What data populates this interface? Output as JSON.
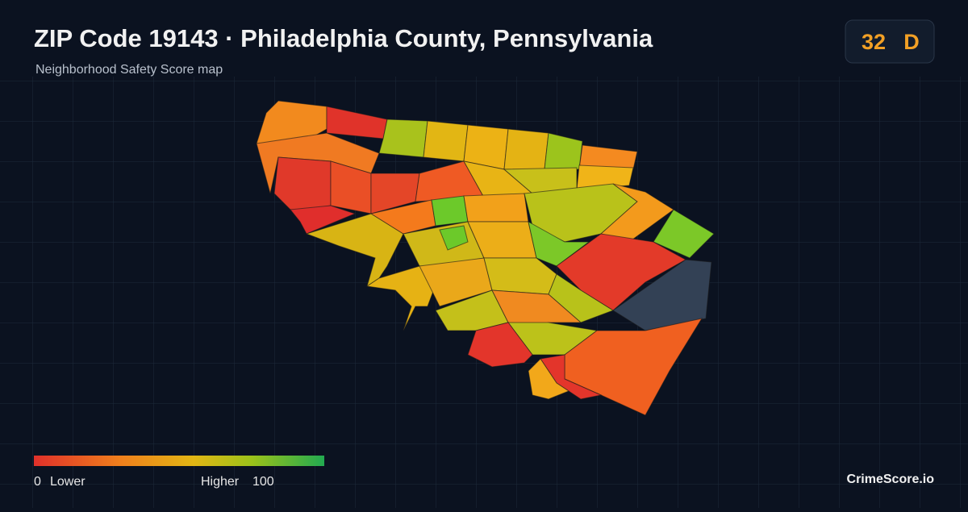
{
  "header": {
    "title": "ZIP Code 19143 · Philadelphia County, Pennsylvania",
    "subtitle": "Neighborhood Safety Score map"
  },
  "score": {
    "value": 32,
    "grade": "D"
  },
  "legend": {
    "min": 0,
    "min_label": "Lower",
    "max_label": "Higher",
    "max": 100
  },
  "brand": "CrimeScore.io"
}
